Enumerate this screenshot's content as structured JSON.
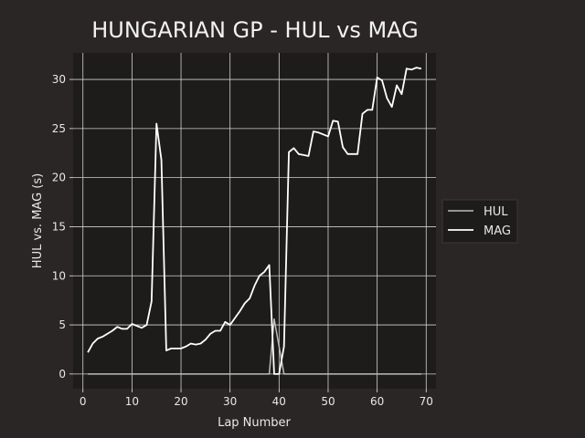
{
  "chart_data": {
    "type": "line",
    "title": "HUNGARIAN GP - HUL vs MAG",
    "xlabel": "Lap Number",
    "ylabel": "HUL vs. MAG (s)",
    "xlim": [
      -2,
      72
    ],
    "ylim": [
      -1.5,
      32.7
    ],
    "xticks": [
      0,
      10,
      20,
      30,
      40,
      50,
      60,
      70
    ],
    "yticks": [
      0,
      5,
      10,
      15,
      20,
      25,
      30
    ],
    "grid": true,
    "legend_position": "right",
    "colors": {
      "background": "#292625",
      "plot_bg": "#1e1c1b",
      "grid": "#d0d0d0",
      "HUL": "#bdbdbd",
      "MAG": "#ffffff"
    },
    "series": [
      {
        "name": "HUL",
        "x": [
          1,
          2,
          3,
          4,
          5,
          6,
          7,
          8,
          9,
          10,
          11,
          12,
          13,
          14,
          15,
          16,
          17,
          18,
          19,
          20,
          21,
          22,
          23,
          24,
          25,
          26,
          27,
          28,
          29,
          30,
          31,
          32,
          33,
          34,
          35,
          36,
          37,
          38,
          39,
          40,
          41,
          42,
          43,
          44,
          45,
          46,
          47,
          48,
          49,
          50,
          51,
          52,
          53,
          54,
          55,
          56,
          57,
          58,
          59,
          60,
          61,
          62,
          63,
          64,
          65,
          66,
          67,
          68,
          69
        ],
        "y": [
          0,
          0,
          0,
          0,
          0,
          0,
          0,
          0,
          0,
          0,
          0,
          0,
          0,
          0,
          0,
          0,
          0,
          0,
          0,
          0,
          0,
          0,
          0,
          0,
          0,
          0,
          0,
          0,
          0,
          0,
          0,
          0,
          0,
          0,
          0,
          0,
          0,
          0,
          5.6,
          2.8,
          0,
          0,
          0,
          0,
          0,
          0,
          0,
          0,
          0,
          0,
          0,
          0,
          0,
          0,
          0,
          0,
          0,
          0,
          0,
          0,
          0,
          0,
          0,
          0,
          0,
          0,
          0,
          0,
          0
        ]
      },
      {
        "name": "MAG",
        "x": [
          1,
          2,
          3,
          4,
          5,
          6,
          7,
          8,
          9,
          10,
          11,
          12,
          13,
          14,
          15,
          16,
          17,
          18,
          19,
          20,
          21,
          22,
          23,
          24,
          25,
          26,
          27,
          28,
          29,
          30,
          31,
          32,
          33,
          34,
          35,
          36,
          37,
          38,
          39,
          40,
          41,
          42,
          43,
          44,
          45,
          46,
          47,
          48,
          49,
          50,
          51,
          52,
          53,
          54,
          55,
          56,
          57,
          58,
          59,
          60,
          61,
          62,
          63,
          64,
          65,
          66,
          67,
          68,
          69
        ],
        "y": [
          2.2,
          3.1,
          3.6,
          3.8,
          4.1,
          4.4,
          4.8,
          4.6,
          4.6,
          5.1,
          4.9,
          4.7,
          5.0,
          7.4,
          25.5,
          21.8,
          2.4,
          2.6,
          2.6,
          2.6,
          2.8,
          3.1,
          3.0,
          3.1,
          3.5,
          4.1,
          4.4,
          4.4,
          5.3,
          5.0,
          5.7,
          6.4,
          7.2,
          7.7,
          9.0,
          10.0,
          10.4,
          11.1,
          0.0,
          0.0,
          2.8,
          22.6,
          23.0,
          22.4,
          22.3,
          22.2,
          24.7,
          24.6,
          24.4,
          24.2,
          25.8,
          25.7,
          23.1,
          22.4,
          22.4,
          22.4,
          26.5,
          26.9,
          26.9,
          30.2,
          29.9,
          28.1,
          27.2,
          29.4,
          28.5,
          31.1,
          31.0,
          31.2,
          31.1
        ]
      }
    ]
  }
}
